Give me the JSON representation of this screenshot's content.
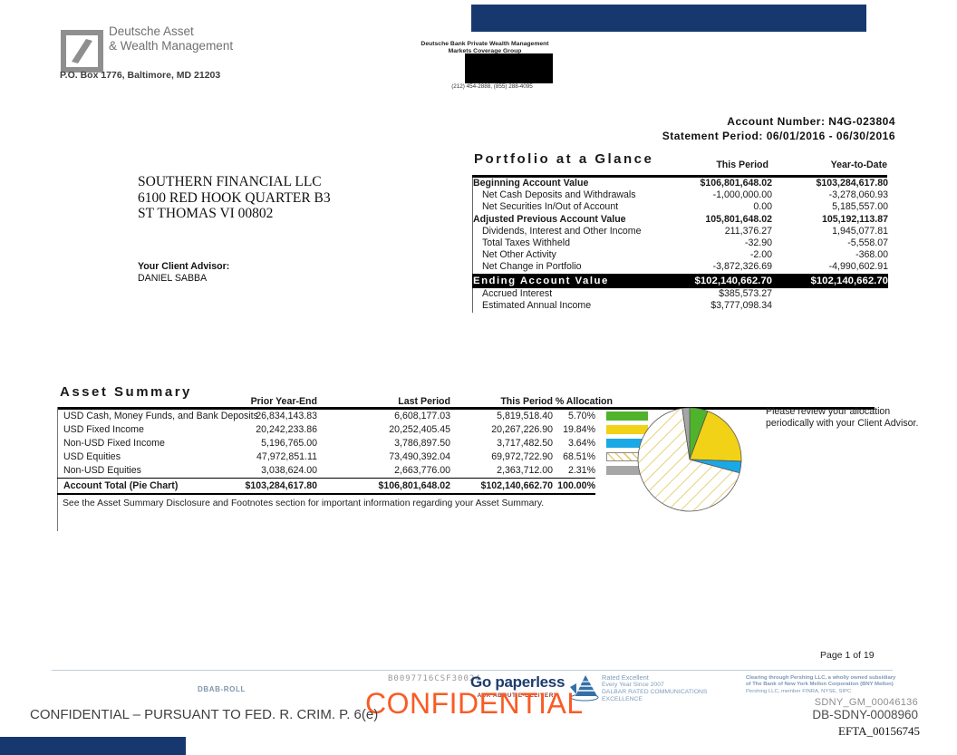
{
  "header": {
    "brand_line1": "Deutsche Asset",
    "brand_line2": "& Wealth Management",
    "po_box": "P.O. Box 1776, Baltimore, MD 21203",
    "group_line1": "Deutsche Bank Private Wealth Management",
    "group_line2": "Markets Coverage Group",
    "group_phone": "(212) 454-2888, (855) 288-4095",
    "account_number": "Account Number: N4G-023804",
    "statement_period": "Statement Period: 06/01/2016 - 06/30/2016",
    "redaction_bar_color": "#16386e",
    "contact_redaction_color": "#000000"
  },
  "client": {
    "name": "SOUTHERN FINANCIAL LLC",
    "address1": "6100 RED HOOK QUARTER B3",
    "address2": "ST THOMAS VI 00802",
    "advisor_label": "Your Client Advisor:",
    "advisor_name": "DANIEL SABBA"
  },
  "portfolio": {
    "title": "Portfolio at a Glance",
    "col_this_period": "This Period",
    "col_ytd": "Year-to-Date",
    "rows": [
      {
        "label": "Beginning Account Value",
        "this_period": "$106,801,648.02",
        "ytd": "$103,284,617.80",
        "style": "bold"
      },
      {
        "label": "Net Cash Deposits and Withdrawals",
        "this_period": "-1,000,000.00",
        "ytd": "-3,278,060.93",
        "style": "indent"
      },
      {
        "label": "Net Securities In/Out of Account",
        "this_period": "0.00",
        "ytd": "5,185,557.00",
        "style": "indent"
      },
      {
        "label": "Adjusted Previous Account Value",
        "this_period": "105,801,648.02",
        "ytd": "105,192,113.87",
        "style": "bold"
      },
      {
        "label": "Dividends, Interest and Other Income",
        "this_period": "211,376.27",
        "ytd": "1,945,077.81",
        "style": "indent"
      },
      {
        "label": "Total Taxes Withheld",
        "this_period": "-32.90",
        "ytd": "-5,558.07",
        "style": "indent"
      },
      {
        "label": "Net Other Activity",
        "this_period": "-2.00",
        "ytd": "-368.00",
        "style": "indent"
      },
      {
        "label": "Net Change in Portfolio",
        "this_period": "-3,872,326.69",
        "ytd": "-4,990,602.91",
        "style": "indent"
      },
      {
        "label": "Ending Account Value",
        "this_period": "$102,140,662.70",
        "ytd": "$102,140,662.70",
        "style": "ending"
      },
      {
        "label": "Accrued Interest",
        "this_period": "$385,573.27",
        "ytd": "",
        "style": "indent"
      },
      {
        "label": "Estimated Annual Income",
        "this_period": "$3,777,098.34",
        "ytd": "",
        "style": "indent"
      }
    ]
  },
  "asset_summary": {
    "title": "Asset Summary",
    "col_prior": "Prior Year-End",
    "col_last": "Last Period",
    "col_this": "This Period",
    "col_alloc": "% Allocation",
    "rows": [
      {
        "label": "USD Cash, Money Funds, and Bank Deposits",
        "prior": "26,834,143.83",
        "last": "6,608,177.03",
        "this": "5,819,518.40",
        "alloc": "5.70%",
        "swatch": "#4fb32c"
      },
      {
        "label": "USD Fixed Income",
        "prior": "20,242,233.86",
        "last": "20,252,405.45",
        "this": "20,267,226.90",
        "alloc": "19.84%",
        "swatch": "#f2d216"
      },
      {
        "label": "Non-USD Fixed Income",
        "prior": "5,196,765.00",
        "last": "3,786,897.50",
        "this": "3,717,482.50",
        "alloc": "3.64%",
        "swatch": "#1ba8e6"
      },
      {
        "label": "USD Equities",
        "prior": "47,972,851.11",
        "last": "73,490,392.04",
        "this": "69,972,722.90",
        "alloc": "68.51%",
        "swatch": "hatch"
      },
      {
        "label": "Non-USD Equities",
        "prior": "3,038,624.00",
        "last": "2,663,776.00",
        "this": "2,363,712.00",
        "alloc": "2.31%",
        "swatch": "#a6a6a6"
      }
    ],
    "total": {
      "label": "Account Total (Pie Chart)",
      "prior": "$103,284,617.80",
      "last": "$106,801,648.02",
      "this": "$102,140,662.70",
      "alloc": "100.00%"
    },
    "footnote": "See the Asset Summary Disclosure and Footnotes section for important information regarding your Asset Summary.",
    "advisor_note_line1": "Please review your allocation",
    "advisor_note_line2": "periodically with your Client Advisor."
  },
  "chart_data": {
    "type": "pie",
    "title": "Asset Summary allocation pie chart",
    "labels": [
      "USD Cash, Money Funds, and Bank Deposits",
      "USD Fixed Income",
      "Non-USD Fixed Income",
      "USD Equities",
      "Non-USD Equities"
    ],
    "values": [
      5.7,
      19.84,
      3.64,
      68.51,
      2.31
    ],
    "colors": [
      "#4fb32c",
      "#f2d216",
      "#1ba8e6",
      "hatch",
      "#a6a6a6"
    ],
    "legend_position": "table-row-swatches"
  },
  "footer": {
    "page_label": "Page 1 of 19",
    "dbab": "DBAB-ROLL",
    "barcode_id": "B0097716CSF30024",
    "paperless_title": "Go paperless",
    "paperless_sub": "ASK ABOUT E-DELIVERY",
    "dalbar_line1": "Rated Excellent",
    "dalbar_line2": "Every Year Since 2007",
    "dalbar_line3": "DALBAR RATED COMMUNICATIONS",
    "dalbar_line4": "EXCELLENCE",
    "pershing_line1": "Clearing through Pershing LLC, a wholly owned subsidiary",
    "pershing_line2": "of The Bank of New York Mellon Corporation (BNY Mellon)",
    "pershing_line3": "Pershing LLC, member FINRA, NYSE, SIPC",
    "sdny_gm": "SDNY_GM_00046136",
    "db_sdny": "DB-SDNY-0008960",
    "efta": "EFTA_00156745",
    "confidential_watermark": "CONFIDENTIAL",
    "confidential_watermark_color": "#f95b25",
    "confidential_legal": "CONFIDENTIAL – PURSUANT TO FED. R. CRIM. P. 6(e)"
  }
}
